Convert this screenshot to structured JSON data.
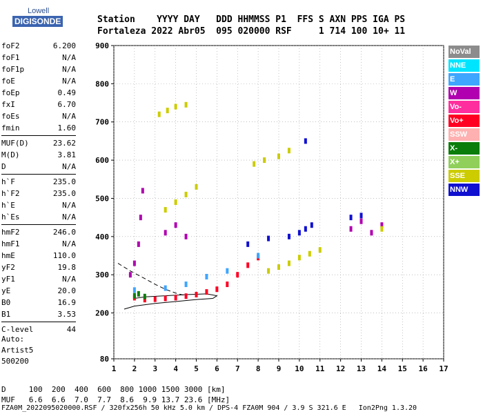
{
  "logo": {
    "top": "Lowell",
    "bottom": "DIGISONDE"
  },
  "header": {
    "line1": "Station    YYYY DAY   DDD HHMMSS P1  FFS S AXN PPS IGA PS",
    "line2": "Fortaleza 2022 Abr05  095 020000 RSF     1 714 100 10+ 11"
  },
  "params": [
    {
      "label": "foF2",
      "value": "6.200"
    },
    {
      "label": "foF1",
      "value": "N/A"
    },
    {
      "label": "foF1p",
      "value": "N/A"
    },
    {
      "label": "foE",
      "value": "N/A"
    },
    {
      "label": "foEp",
      "value": "0.49"
    },
    {
      "label": "fxI",
      "value": "6.70"
    },
    {
      "label": "foEs",
      "value": "N/A"
    },
    {
      "label": "fmin",
      "value": "1.60"
    },
    {
      "label": "MUF(D)",
      "value": "23.62"
    },
    {
      "label": "M(D)",
      "value": "3.81"
    },
    {
      "label": "D",
      "value": "N/A"
    },
    {
      "label": "h`F",
      "value": "235.0"
    },
    {
      "label": "h`F2",
      "value": "235.0"
    },
    {
      "label": "h`E",
      "value": "N/A"
    },
    {
      "label": "h`Es",
      "value": "N/A"
    },
    {
      "label": "hmF2",
      "value": "246.0"
    },
    {
      "label": "hmF1",
      "value": "N/A"
    },
    {
      "label": "hmE",
      "value": "110.0"
    },
    {
      "label": "yF2",
      "value": "19.8"
    },
    {
      "label": "yF1",
      "value": "N/A"
    },
    {
      "label": "yE",
      "value": "20.0"
    },
    {
      "label": "B0",
      "value": "16.9"
    },
    {
      "label": "B1",
      "value": "3.53"
    },
    {
      "label": "C-level",
      "value": "44"
    }
  ],
  "auto": {
    "line1": "Auto:",
    "line2": "Artist5",
    "line3": "500200"
  },
  "legend": [
    {
      "label": "NoVal",
      "color": "#8c8c8c"
    },
    {
      "label": "NNE",
      "color": "#00e5ff"
    },
    {
      "label": "E",
      "color": "#3ea6ff"
    },
    {
      "label": "W",
      "color": "#b000b0"
    },
    {
      "label": "Vo-",
      "color": "#ff2e9e"
    },
    {
      "label": "Vo+",
      "color": "#ff0022"
    },
    {
      "label": "SSW",
      "color": "#ffb0b0"
    },
    {
      "label": "X-",
      "color": "#0a7d0a"
    },
    {
      "label": "X+",
      "color": "#8fcf5a"
    },
    {
      "label": "SSE",
      "color": "#cccc00"
    },
    {
      "label": "NNW",
      "color": "#1010d0"
    }
  ],
  "bottom": {
    "d_line": "D     100  200  400  600  800 1000 1500 3000 [km]",
    "muf_line": "MUF   6.6  6.6  7.0  7.7  8.6  9.9 13.7 23.6 [MHz]",
    "footer": "FZA0M_2022095020000.RSF / 320fx256h 50 kHz 5.0 km / DPS-4 FZA0M 904 / 3.9 S 321.6 E   Ion2Png 1.3.20"
  },
  "chart_data": {
    "type": "scatter",
    "xlim": [
      1,
      17
    ],
    "ylim": [
      80,
      900
    ],
    "x_ticks": [
      1,
      2,
      3,
      4,
      5,
      6,
      7,
      8,
      9,
      10,
      11,
      12,
      13,
      14,
      15,
      16,
      17
    ],
    "y_ticks": [
      80,
      200,
      300,
      400,
      500,
      600,
      700,
      800,
      900
    ],
    "grid": true,
    "series": [
      {
        "name": "Vo+",
        "color": "#ff0022",
        "points": [
          [
            2.0,
            240
          ],
          [
            2.5,
            235
          ],
          [
            3.0,
            236
          ],
          [
            3.5,
            238
          ],
          [
            4.0,
            240
          ],
          [
            4.5,
            244
          ],
          [
            5.0,
            248
          ],
          [
            5.5,
            255
          ],
          [
            6.0,
            262
          ],
          [
            6.5,
            275
          ],
          [
            7.0,
            300
          ],
          [
            7.5,
            325
          ],
          [
            8.0,
            345
          ]
        ]
      },
      {
        "name": "W",
        "color": "#b000b0",
        "points": [
          [
            1.8,
            300
          ],
          [
            2.0,
            330
          ],
          [
            2.2,
            380
          ],
          [
            2.3,
            450
          ],
          [
            2.4,
            520
          ],
          [
            3.5,
            410
          ],
          [
            4.0,
            430
          ],
          [
            4.5,
            400
          ],
          [
            12.5,
            420
          ],
          [
            13.0,
            440
          ],
          [
            13.5,
            410
          ],
          [
            14.0,
            430
          ]
        ]
      },
      {
        "name": "SSE",
        "color": "#cccc00",
        "points": [
          [
            3.2,
            720
          ],
          [
            3.6,
            730
          ],
          [
            4.0,
            740
          ],
          [
            4.5,
            745
          ],
          [
            3.5,
            470
          ],
          [
            4.0,
            490
          ],
          [
            4.5,
            510
          ],
          [
            5.0,
            530
          ],
          [
            7.8,
            590
          ],
          [
            8.3,
            600
          ],
          [
            9.0,
            610
          ],
          [
            9.5,
            625
          ],
          [
            8.5,
            310
          ],
          [
            9.0,
            320
          ],
          [
            9.5,
            330
          ],
          [
            10.0,
            345
          ],
          [
            10.5,
            355
          ],
          [
            11.0,
            365
          ],
          [
            14.0,
            420
          ]
        ]
      },
      {
        "name": "NNW",
        "color": "#1010d0",
        "points": [
          [
            7.5,
            380
          ],
          [
            8.5,
            395
          ],
          [
            9.5,
            400
          ],
          [
            10.0,
            410
          ],
          [
            10.3,
            420
          ],
          [
            10.6,
            430
          ],
          [
            10.3,
            650
          ],
          [
            12.5,
            450
          ],
          [
            13.0,
            455
          ]
        ]
      },
      {
        "name": "E",
        "color": "#3ea6ff",
        "points": [
          [
            2.0,
            260
          ],
          [
            3.5,
            265
          ],
          [
            4.5,
            275
          ],
          [
            5.5,
            295
          ],
          [
            6.5,
            310
          ],
          [
            8.0,
            350
          ]
        ]
      },
      {
        "name": "X-",
        "color": "#0a7d0a",
        "points": [
          [
            2.0,
            245
          ],
          [
            2.2,
            250
          ],
          [
            2.5,
            243
          ]
        ]
      }
    ],
    "trace_solid": [
      [
        1.5,
        210
      ],
      [
        2.0,
        218
      ],
      [
        3.0,
        225
      ],
      [
        4.0,
        230
      ],
      [
        5.0,
        235
      ],
      [
        5.8,
        238
      ],
      [
        6.0,
        245
      ],
      [
        5.5,
        250
      ],
      [
        4.5,
        248
      ],
      [
        3.5,
        245
      ],
      [
        2.5,
        242
      ],
      [
        2.0,
        238
      ]
    ],
    "trace_dashed": [
      [
        1.2,
        330
      ],
      [
        1.8,
        310
      ],
      [
        2.5,
        290
      ],
      [
        3.0,
        275
      ],
      [
        3.5,
        262
      ],
      [
        4.0,
        252
      ],
      [
        4.5,
        245
      ]
    ]
  }
}
